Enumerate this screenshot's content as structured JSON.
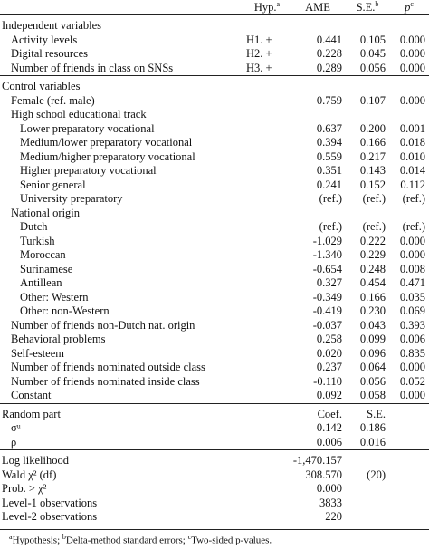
{
  "header": {
    "hyp": {
      "text": "Hyp.",
      "note": "a"
    },
    "ame": {
      "text": "AME"
    },
    "se": {
      "text": "S.E.",
      "note": "b"
    },
    "p": {
      "text": "p",
      "note": "c"
    }
  },
  "sections": [
    {
      "title": "Independent variables",
      "rows": [
        {
          "label": "Activity levels",
          "hyp": "H1. +",
          "ame": "0.441",
          "se": "0.105",
          "p": "0.000"
        },
        {
          "label": "Digital resources",
          "hyp": "H2. +",
          "ame": "0.228",
          "se": "0.045",
          "p": "0.000"
        },
        {
          "label": "Number of friends in class on SNSs",
          "hyp": "H3. +",
          "ame": "0.289",
          "se": "0.056",
          "p": "0.000"
        }
      ]
    },
    {
      "title": "Control variables",
      "rows": [
        {
          "label": "Female (ref. male)",
          "ame": "0.759",
          "se": "0.107",
          "p": "0.000"
        },
        {
          "label": "High school educational track",
          "rows": [
            {
              "label": "Lower preparatory vocational",
              "ame": "0.637",
              "se": "0.200",
              "p": "0.001"
            },
            {
              "label": "Medium/lower preparatory vocational",
              "ame": "0.394",
              "se": "0.166",
              "p": "0.018"
            },
            {
              "label": "Medium/higher preparatory vocational",
              "ame": "0.559",
              "se": "0.217",
              "p": "0.010"
            },
            {
              "label": "Higher preparatory vocational",
              "ame": "0.351",
              "se": "0.143",
              "p": "0.014"
            },
            {
              "label": "Senior general",
              "ame": "0.241",
              "se": "0.152",
              "p": "0.112"
            },
            {
              "label": "University preparatory",
              "ame": "(ref.)",
              "se": "(ref.)",
              "p": "(ref.)"
            }
          ]
        },
        {
          "label": "National origin",
          "rows": [
            {
              "label": "Dutch",
              "ame": "(ref.)",
              "se": "(ref.)",
              "p": "(ref.)"
            },
            {
              "label": "Turkish",
              "ame": "-1.029",
              "se": "0.222",
              "p": "0.000"
            },
            {
              "label": "Moroccan",
              "ame": "-1.340",
              "se": "0.229",
              "p": "0.000"
            },
            {
              "label": "Surinamese",
              "ame": "-0.654",
              "se": "0.248",
              "p": "0.008"
            },
            {
              "label": "Antillean",
              "ame": "0.327",
              "se": "0.454",
              "p": "0.471"
            },
            {
              "label": "Other: Western",
              "ame": "-0.349",
              "se": "0.166",
              "p": "0.035"
            },
            {
              "label": "Other: non-Western",
              "ame": "-0.419",
              "se": "0.230",
              "p": "0.069"
            }
          ]
        },
        {
          "label": "Number of friends non-Dutch nat. origin",
          "ame": "-0.037",
          "se": "0.043",
          "p": "0.393"
        },
        {
          "label": "Behavioral problems",
          "ame": "0.258",
          "se": "0.099",
          "p": "0.006"
        },
        {
          "label": "Self-esteem",
          "ame": "0.020",
          "se": "0.096",
          "p": "0.835"
        },
        {
          "label": "Number of friends nominated outside class",
          "ame": "0.237",
          "se": "0.064",
          "p": "0.000"
        },
        {
          "label": "Number of friends nominated inside class",
          "ame": "-0.110",
          "se": "0.056",
          "p": "0.052"
        },
        {
          "label": "Constant",
          "ame": "0.092",
          "se": "0.058",
          "p": "0.000"
        }
      ]
    },
    {
      "title": "Random part",
      "ame": "Coef.",
      "se": "S.E.",
      "rows": [
        {
          "label": "σᵘ",
          "ame": "0.142",
          "se": "0.186"
        },
        {
          "label": "ρ",
          "ame": "0.006",
          "se": "0.016"
        }
      ]
    },
    {
      "rows": [
        {
          "label": "Log likelihood",
          "ame": "-1,470.157"
        },
        {
          "label": "Wald χ² (df)",
          "ame": "308.570",
          "se": "(20)"
        },
        {
          "label": "Prob. > χ²",
          "ame": "0.000"
        },
        {
          "label": "Level-1 observations",
          "ame": "3833"
        },
        {
          "label": "Level-2 observations",
          "ame": "220"
        }
      ]
    }
  ],
  "footnotes": [
    {
      "mark": "a",
      "text": "Hypothesis;"
    },
    {
      "mark": "b",
      "text": "Delta-method standard errors;"
    },
    {
      "mark": "c",
      "text": "Two-sided p-values."
    }
  ]
}
